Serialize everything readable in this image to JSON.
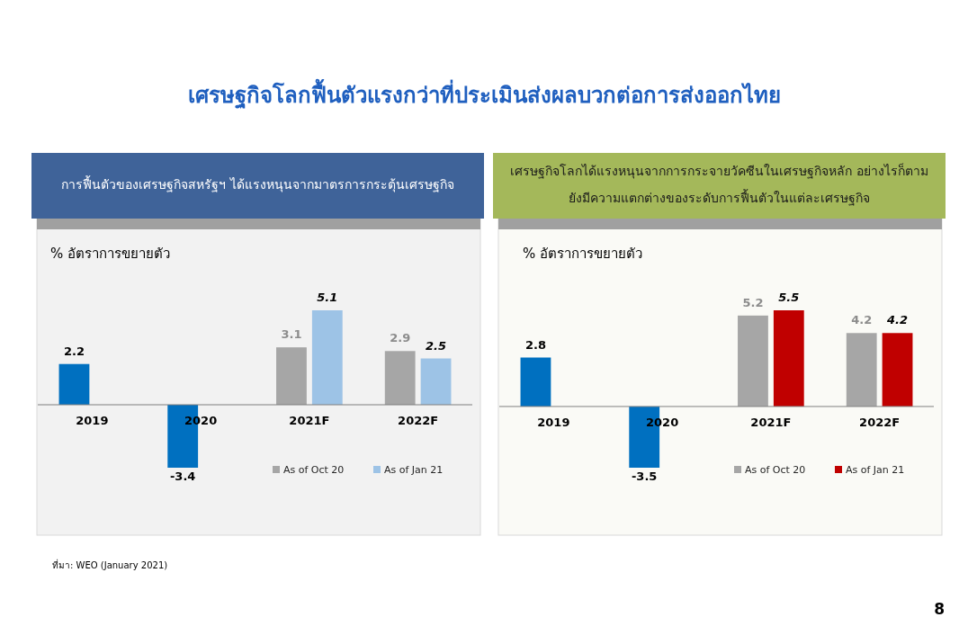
{
  "chart_data": [
    {
      "type": "bar",
      "title": "เศรษฐกิจโลกฟื้นตัวแรงกว่าที่ประเมินส่งผลบวกต่อการส่งออกไทย",
      "subtitle": "การฟื้นตัวของเศรษฐกิจสหรัฐฯ ได้แรงหนุนจากมาตรการกระตุ้นเศรษฐกิจ",
      "ylabel": "% อัตราการขยายตัว",
      "categories": [
        "2019",
        "2020",
        "2021F",
        "2022F"
      ],
      "series": [
        {
          "name": "As of Oct 20",
          "color": "#a6a6a6",
          "colors": [
            "#0070c0",
            "#0070c0",
            "#a6a6a6",
            "#a6a6a6"
          ],
          "values": [
            2.2,
            -3.4,
            3.1,
            2.9
          ]
        },
        {
          "name": "As of Jan 21",
          "color": "#9dc3e6",
          "values": [
            null,
            null,
            5.1,
            2.5
          ]
        }
      ],
      "data_labels": true,
      "legend": "bottom right",
      "annotations": [
        "ที่มา: WEO (January 2021)"
      ]
    },
    {
      "type": "bar",
      "subtitle": "เศรษฐกิจโลกได้แรงหนุนจากการกระจายวัคซีนในเศรษฐกิจหลัก อย่างไรก็ตาม ยังมีความแตกต่างของระดับการฟื้นตัวในแต่ละเศรษฐกิจ",
      "ylabel": "% อัตราการขยายตัว",
      "categories": [
        "2019",
        "2020",
        "2021F",
        "2022F"
      ],
      "series": [
        {
          "name": "As of Oct 20",
          "color": "#a6a6a6",
          "colors": [
            "#0070c0",
            "#0070c0",
            "#a6a6a6",
            "#a6a6a6"
          ],
          "values": [
            2.8,
            -3.5,
            5.2,
            4.2
          ]
        },
        {
          "name": "As of Jan 21",
          "color": "#c00000",
          "values": [
            null,
            null,
            5.5,
            4.2
          ]
        }
      ],
      "data_labels": true,
      "legend": "bottom right",
      "annotations": [
        "8"
      ]
    }
  ]
}
